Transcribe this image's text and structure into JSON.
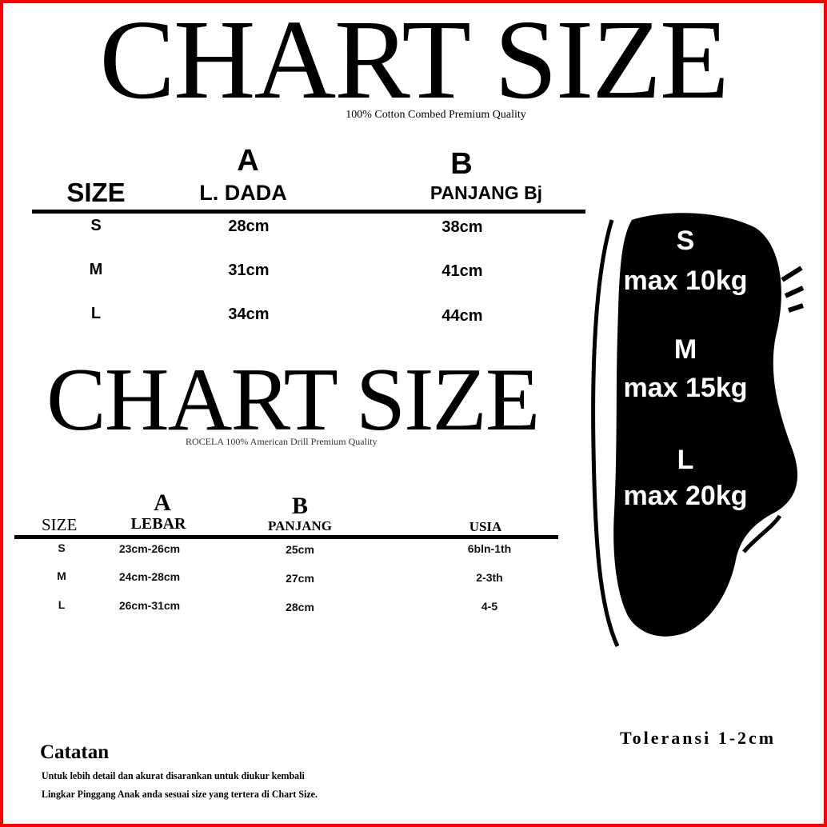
{
  "top_chart": {
    "title": "CHART SIZE",
    "subtitle": "100% Cotton Combed Premium Quality",
    "headers": {
      "size": "SIZE",
      "a_letter": "A",
      "a_label": "L. DADA",
      "b_letter": "B",
      "b_label": "PANJANG Bj"
    },
    "rows": [
      {
        "size": "S",
        "a": "28cm",
        "b": "38cm"
      },
      {
        "size": "M",
        "a": "31cm",
        "b": "41cm"
      },
      {
        "size": "L",
        "a": "34cm",
        "b": "44cm"
      }
    ]
  },
  "second_chart": {
    "title": "CHART SIZE",
    "subtitle": "ROCELA 100% American Drill Premium Quality",
    "headers": {
      "size": "SIZE",
      "a_letter": "A",
      "a_label": "LEBAR",
      "b_letter": "B",
      "b_label": "PANJANG",
      "usia": "USIA"
    },
    "rows": [
      {
        "size": "S",
        "a": "23cm-26cm",
        "b": "25cm",
        "usia": "6bln-1th"
      },
      {
        "size": "M",
        "a": "24cm-28cm",
        "b": "27cm",
        "usia": "2-3th"
      },
      {
        "size": "L",
        "a": "26cm-31cm",
        "b": "28cm",
        "usia": "4-5"
      }
    ]
  },
  "silhouette": {
    "lines": [
      "S",
      "max 10kg",
      "M",
      "max 15kg",
      "L",
      "max 20kg"
    ]
  },
  "footer": {
    "tolerance": "Toleransi 1-2cm",
    "note_title": "Catatan",
    "note_lines": [
      "Untuk lebih detail dan akurat disarankan untuk diukur kembali",
      "Lingkar Pinggang Anak  anda sesuai size yang tertera di Chart Size."
    ]
  },
  "colors": {
    "border": "#ff0000",
    "text": "#000000",
    "silhouette": "#000000"
  }
}
